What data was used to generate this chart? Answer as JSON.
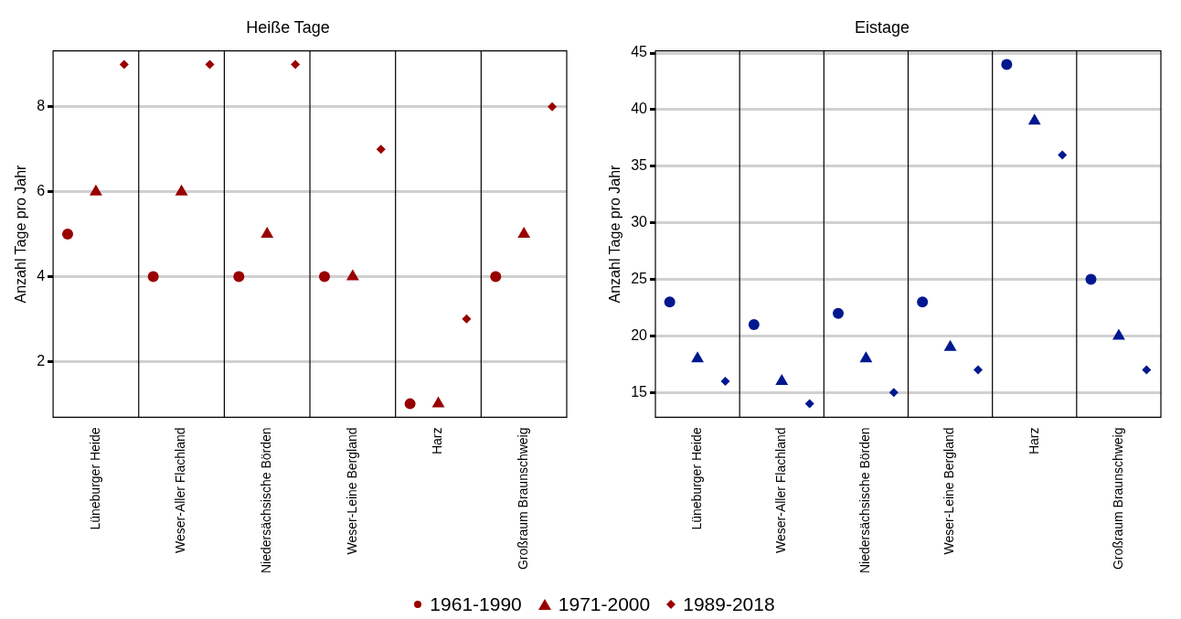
{
  "chart_data": [
    {
      "type": "scatter",
      "title": "Heiße Tage",
      "ylabel": "Anzahl Tage pro Jahr",
      "categories": [
        "Lüneburger Heide",
        "Weser-Aller Flachland",
        "Niedersächsische Börden",
        "Weser-Leine Bergland",
        "Harz",
        "Großraum Braunschweig"
      ],
      "series": [
        {
          "name": "1961-1990",
          "color": "#990000",
          "marker": "circle",
          "values": [
            5,
            4,
            4,
            4,
            1,
            4
          ]
        },
        {
          "name": "1971-2000",
          "color": "#990000",
          "marker": "triangle",
          "values": [
            6,
            6,
            5,
            4,
            1,
            5
          ]
        },
        {
          "name": "1989-2018",
          "color": "#990000",
          "marker": "diamond",
          "values": [
            9,
            9,
            9,
            7,
            3,
            8
          ]
        }
      ],
      "ylim": [
        0.68,
        9.32
      ],
      "yticks": [
        2,
        4,
        6,
        8
      ],
      "grid": true,
      "legend": "bottom"
    },
    {
      "type": "scatter",
      "title": "Eistage",
      "ylabel": "Anzahl Tage pro Jahr",
      "categories": [
        "Lüneburger Heide",
        "Weser-Aller Flachland",
        "Niedersächsische Börden",
        "Weser-Leine Bergland",
        "Harz",
        "Großraum Braunschweig"
      ],
      "series": [
        {
          "color": "#00188f",
          "marker": "circle",
          "values": [
            23,
            21,
            22,
            23,
            44,
            25
          ]
        },
        {
          "color": "#00188f",
          "marker": "triangle",
          "values": [
            18,
            16,
            18,
            19,
            39,
            20
          ]
        },
        {
          "color": "#00188f",
          "marker": "diamond",
          "values": [
            16,
            14,
            15,
            17,
            36,
            17
          ]
        }
      ],
      "ylim": [
        12.8,
        45.2
      ],
      "yticks": [
        15,
        20,
        25,
        30,
        35,
        40,
        45
      ],
      "grid": true
    }
  ]
}
